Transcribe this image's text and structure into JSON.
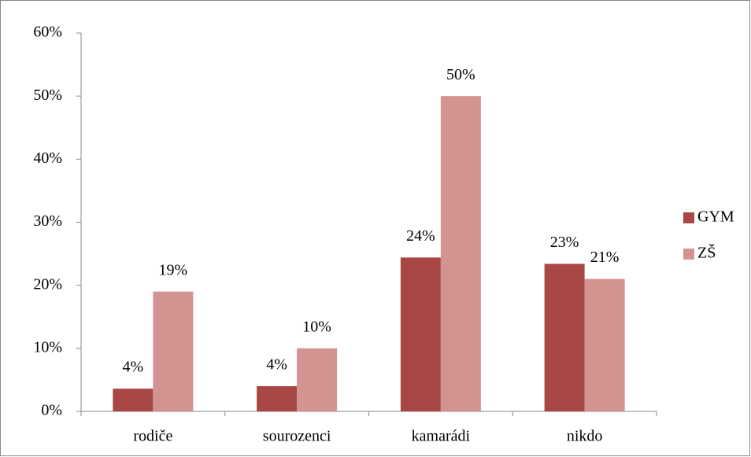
{
  "chart_data": {
    "type": "bar",
    "categories": [
      "rodiče",
      "sourozenci",
      "kamarádi",
      "nikdo"
    ],
    "series": [
      {
        "name": "GYM",
        "color": "#a84743",
        "values": [
          3.6,
          4,
          24.4,
          23.4
        ],
        "value_labels": [
          "4%",
          "4%",
          "24%",
          "23%"
        ]
      },
      {
        "name": "ZŠ",
        "color": "#d39391",
        "values": [
          19,
          10,
          50,
          21
        ],
        "value_labels": [
          "19%",
          "10%",
          "50%",
          "21%"
        ]
      }
    ],
    "ylim": [
      0,
      60
    ],
    "yticks": [
      {
        "value": 0,
        "label": "0%"
      },
      {
        "value": 10,
        "label": "10%"
      },
      {
        "value": 20,
        "label": "20%"
      },
      {
        "value": 30,
        "label": "30%"
      },
      {
        "value": 40,
        "label": "40%"
      },
      {
        "value": 50,
        "label": "50%"
      },
      {
        "value": 60,
        "label": "60%"
      }
    ],
    "legend": "right"
  }
}
